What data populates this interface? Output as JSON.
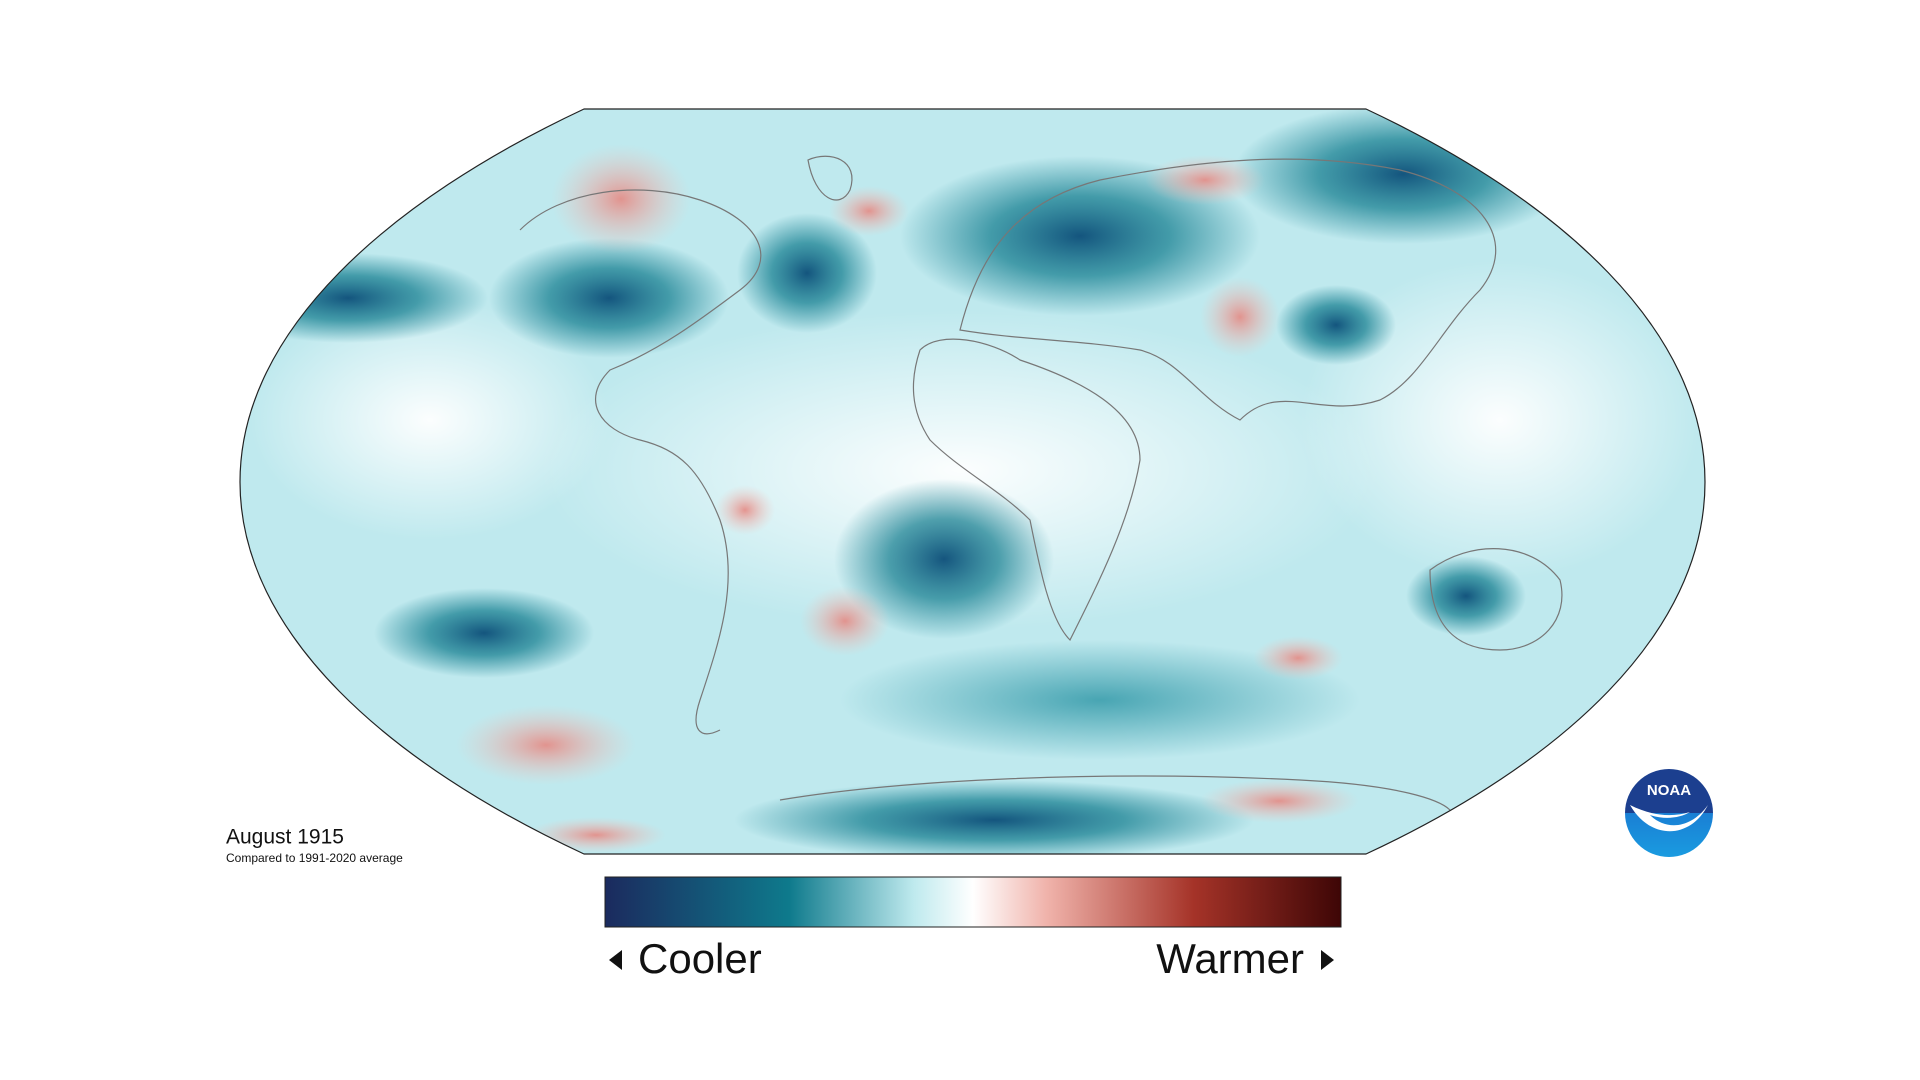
{
  "caption": {
    "title": "August 1915",
    "subtitle": "Compared to 1991-2020 average"
  },
  "legend": {
    "low_label": "Cooler",
    "high_label": "Warmer"
  },
  "logo": {
    "text": "NOAA"
  }
}
